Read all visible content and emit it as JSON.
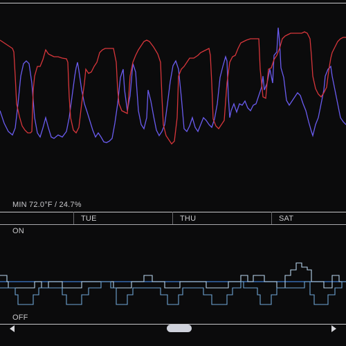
{
  "temperature_panel": {
    "min_label": "MIN 72.0°F / 24.7%",
    "colors": {
      "temperature": "#d8363b",
      "humidity": "#6a5cf0",
      "background": "#0b0b0c"
    }
  },
  "timeline": {
    "days": [
      "TUE",
      "THU",
      "SAT"
    ]
  },
  "state_panel": {
    "on_label": "ON",
    "off_label": "OFF",
    "colors": {
      "state_line": "#6fa6d6",
      "baseline": "#3d7bd0"
    }
  },
  "scrollbar": {
    "left_icon": "chevron-left-icon",
    "right_icon": "chevron-right-icon",
    "thumb_position": 0.52
  }
}
